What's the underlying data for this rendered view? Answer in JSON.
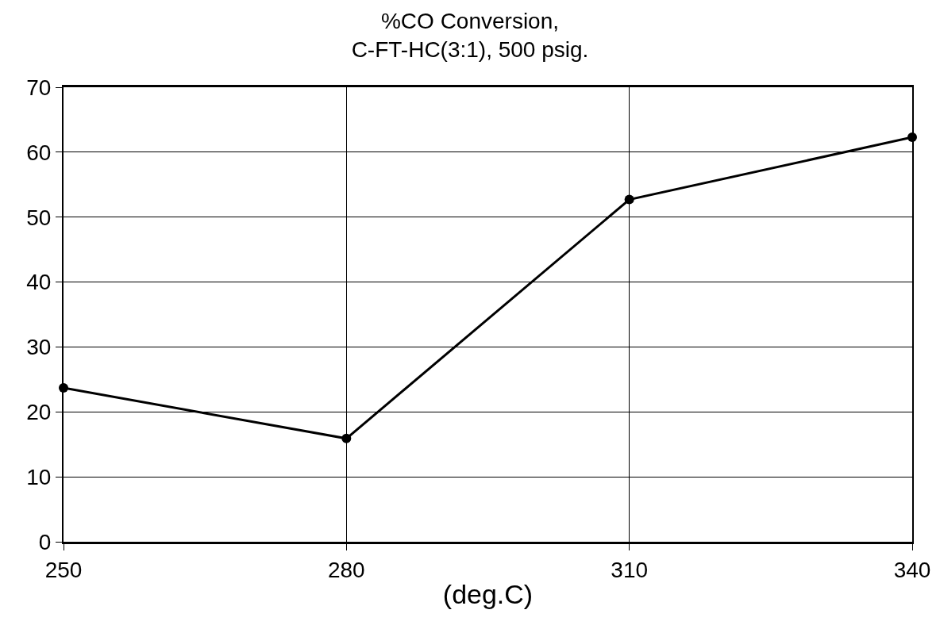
{
  "chart_data": {
    "type": "line",
    "title": "%CO Conversion,\nC-FT-HC(3:1), 500 psig.",
    "xlabel": "(deg.C)",
    "x": [
      250,
      280,
      310,
      340
    ],
    "series": [
      {
        "color": "#000000",
        "values": [
          23.7,
          15.9,
          52.7,
          62.3
        ]
      }
    ],
    "xlim": [
      250,
      340
    ],
    "xticks": [
      250,
      280,
      310,
      340
    ],
    "ylim": [
      0,
      70
    ],
    "yticks": [
      0,
      10,
      20,
      30,
      40,
      50,
      60,
      70
    ],
    "grid": true,
    "legend": false,
    "marker": "circle",
    "line_style": "solid"
  }
}
